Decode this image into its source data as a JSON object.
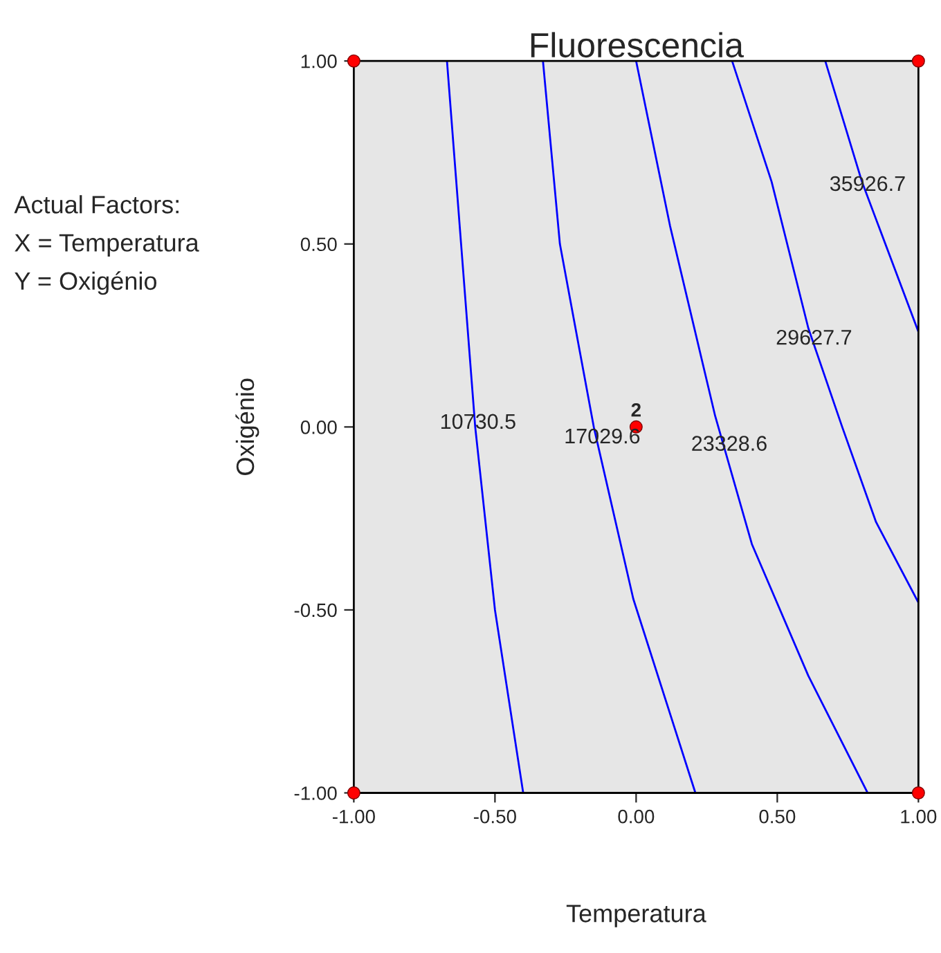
{
  "chart_data": {
    "type": "line",
    "title": "Fluorescencia",
    "xlabel": "Temperatura",
    "ylabel": "Oxigénio",
    "series": [
      {
        "color": "#0000ff",
        "x": [
          -0.67,
          -0.62,
          -0.57,
          -0.5,
          -0.4
        ],
        "values": [
          1.0,
          0.5,
          0.0,
          -0.5,
          -1.0
        ]
      },
      {
        "color": "#0000ff",
        "x": [
          -0.33,
          -0.27,
          -0.15,
          -0.01,
          0.21
        ],
        "values": [
          1.0,
          0.5,
          0.0,
          -0.47,
          -1.0
        ]
      },
      {
        "color": "#0000ff",
        "x": [
          0.0,
          0.12,
          0.28,
          0.41,
          0.61,
          0.82
        ],
        "values": [
          1.0,
          0.55,
          0.03,
          -0.32,
          -0.68,
          -1.0
        ]
      },
      {
        "color": "#0000ff",
        "x": [
          0.34,
          0.48,
          0.61,
          0.73,
          0.85,
          1.0
        ],
        "values": [
          1.0,
          0.67,
          0.27,
          0.0,
          -0.26,
          -0.48
        ]
      },
      {
        "color": "#0000ff",
        "x": [
          0.67,
          0.8,
          1.0
        ],
        "values": [
          1.0,
          0.67,
          0.26
        ]
      },
      {
        "type": "scatter",
        "color": "#ff0000",
        "marker": "circle",
        "x": [
          -1,
          1,
          -1,
          1,
          0
        ],
        "values": [
          -1,
          -1,
          1,
          1,
          0
        ]
      }
    ],
    "annotations": [
      {
        "text": "10730.5",
        "x": -0.56,
        "y": 0.01
      },
      {
        "text": "17029.6",
        "x": -0.12,
        "y": -0.03
      },
      {
        "text": "23328.6",
        "x": 0.33,
        "y": -0.05
      },
      {
        "text": "29627.7",
        "x": 0.63,
        "y": 0.24
      },
      {
        "text": "35926.7",
        "x": 0.82,
        "y": 0.66
      },
      {
        "text": "2",
        "x": 0,
        "y": 0
      },
      "Actual Factors:",
      "X = Temperatura",
      "Y = Oxigénio"
    ],
    "xlim": [
      -1,
      1
    ],
    "ylim": [
      -1,
      1
    ],
    "xticks": [
      {
        "value": -1,
        "label": "-1.00"
      },
      {
        "value": -0.5,
        "label": "-0.50"
      },
      {
        "value": 0,
        "label": "0.00"
      },
      {
        "value": 0.5,
        "label": "0.50"
      },
      {
        "value": 1,
        "label": "1.00"
      }
    ],
    "yticks": [
      {
        "value": -1,
        "label": "-1.00"
      },
      {
        "value": -0.5,
        "label": "-0.50"
      },
      {
        "value": 0,
        "label": "0.00"
      },
      {
        "value": 0.5,
        "label": "0.50"
      },
      {
        "value": 1,
        "label": "1.00"
      }
    ],
    "grid": false,
    "legend": false
  }
}
